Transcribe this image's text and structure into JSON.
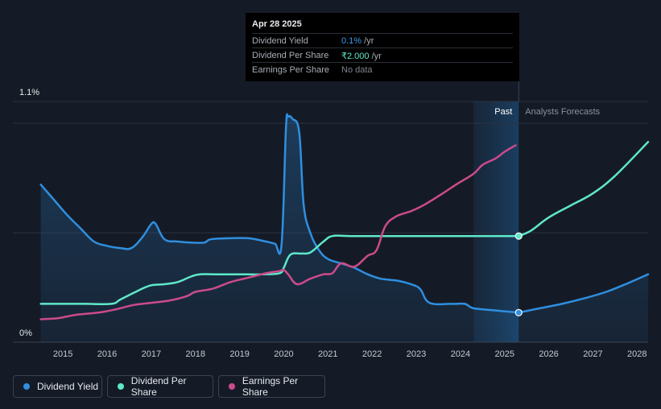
{
  "tooltip": {
    "date": "Apr 28 2025",
    "rows": [
      {
        "label": "Dividend Yield",
        "value": "0.1%",
        "unit": " /yr",
        "color": "#3d9be9"
      },
      {
        "label": "Dividend Per Share",
        "value": "₹2.000",
        "unit": " /yr",
        "color": "#5ee8c9"
      },
      {
        "label": "Earnings Per Share",
        "value": "No data",
        "unit": "",
        "color": "#7d838d"
      }
    ]
  },
  "regions": {
    "past": "Past",
    "forecast": "Analysts Forecasts"
  },
  "legend": [
    {
      "label": "Dividend Yield",
      "color": "#2f8fe0"
    },
    {
      "label": "Dividend Per Share",
      "color": "#5ee8c9"
    },
    {
      "label": "Earnings Per Share",
      "color": "#cc4b8b"
    }
  ],
  "chart_data": {
    "type": "line",
    "y_tick_labels": [
      "1.1%",
      "0%"
    ],
    "ylim": [
      0,
      1.1
    ],
    "xlim": [
      2014.45,
      2028.25
    ],
    "x_ticks": [
      2015,
      2016,
      2017,
      2018,
      2019,
      2020,
      2021,
      2022,
      2023,
      2024,
      2025,
      2026,
      2027,
      2028
    ],
    "past_start": 2024.3,
    "now": 2025.32,
    "grid": true,
    "series": [
      {
        "name": "Dividend Yield",
        "color": "#2f8fe0",
        "area": true,
        "y_unit": "%",
        "points": [
          [
            2014.5,
            0.72
          ],
          [
            2014.8,
            0.65
          ],
          [
            2015.1,
            0.58
          ],
          [
            2015.4,
            0.52
          ],
          [
            2015.7,
            0.46
          ],
          [
            2016.0,
            0.44
          ],
          [
            2016.3,
            0.43
          ],
          [
            2016.55,
            0.43
          ],
          [
            2016.8,
            0.48
          ],
          [
            2017.0,
            0.54
          ],
          [
            2017.1,
            0.54
          ],
          [
            2017.3,
            0.47
          ],
          [
            2017.6,
            0.46
          ],
          [
            2017.9,
            0.455
          ],
          [
            2018.2,
            0.455
          ],
          [
            2018.35,
            0.47
          ],
          [
            2018.8,
            0.475
          ],
          [
            2019.2,
            0.475
          ],
          [
            2019.6,
            0.46
          ],
          [
            2019.8,
            0.45
          ],
          [
            2019.95,
            0.445
          ],
          [
            2020.05,
            0.98
          ],
          [
            2020.1,
            1.03
          ],
          [
            2020.2,
            1.02
          ],
          [
            2020.35,
            0.96
          ],
          [
            2020.45,
            0.63
          ],
          [
            2020.6,
            0.5
          ],
          [
            2020.8,
            0.42
          ],
          [
            2021.0,
            0.38
          ],
          [
            2021.3,
            0.36
          ],
          [
            2021.6,
            0.34
          ],
          [
            2021.9,
            0.31
          ],
          [
            2022.2,
            0.29
          ],
          [
            2022.6,
            0.28
          ],
          [
            2022.95,
            0.26
          ],
          [
            2023.1,
            0.24
          ],
          [
            2023.3,
            0.18
          ],
          [
            2023.8,
            0.175
          ],
          [
            2024.1,
            0.175
          ],
          [
            2024.3,
            0.155
          ],
          [
            2024.8,
            0.145
          ],
          [
            2025.32,
            0.135
          ]
        ],
        "forecast": [
          [
            2025.32,
            0.135
          ],
          [
            2025.8,
            0.155
          ],
          [
            2026.3,
            0.175
          ],
          [
            2026.8,
            0.2
          ],
          [
            2027.3,
            0.23
          ],
          [
            2027.8,
            0.27
          ],
          [
            2028.25,
            0.31
          ]
        ]
      },
      {
        "name": "Dividend Per Share",
        "color": "#5ee8c9",
        "unit": "₹",
        "points": [
          [
            2014.5,
            0.175
          ],
          [
            2015.0,
            0.175
          ],
          [
            2015.5,
            0.175
          ],
          [
            2016.1,
            0.175
          ],
          [
            2016.3,
            0.195
          ],
          [
            2016.6,
            0.225
          ],
          [
            2016.8,
            0.245
          ],
          [
            2017.0,
            0.26
          ],
          [
            2017.3,
            0.265
          ],
          [
            2017.6,
            0.275
          ],
          [
            2017.9,
            0.3
          ],
          [
            2018.1,
            0.31
          ],
          [
            2018.5,
            0.31
          ],
          [
            2019.0,
            0.31
          ],
          [
            2019.5,
            0.31
          ],
          [
            2019.9,
            0.315
          ],
          [
            2020.0,
            0.34
          ],
          [
            2020.15,
            0.4
          ],
          [
            2020.4,
            0.405
          ],
          [
            2020.6,
            0.41
          ],
          [
            2020.9,
            0.46
          ],
          [
            2021.1,
            0.485
          ],
          [
            2021.5,
            0.485
          ],
          [
            2022.5,
            0.485
          ],
          [
            2023.5,
            0.485
          ],
          [
            2024.5,
            0.485
          ],
          [
            2025.32,
            0.485
          ]
        ],
        "forecast": [
          [
            2025.32,
            0.485
          ],
          [
            2025.6,
            0.51
          ],
          [
            2026.0,
            0.57
          ],
          [
            2026.5,
            0.625
          ],
          [
            2027.0,
            0.68
          ],
          [
            2027.5,
            0.76
          ],
          [
            2028.25,
            0.915
          ]
        ]
      },
      {
        "name": "Earnings Per Share",
        "color": "#cc4b8b",
        "points": [
          [
            2014.5,
            0.105
          ],
          [
            2014.9,
            0.11
          ],
          [
            2015.3,
            0.125
          ],
          [
            2015.8,
            0.135
          ],
          [
            2016.2,
            0.15
          ],
          [
            2016.6,
            0.17
          ],
          [
            2017.0,
            0.18
          ],
          [
            2017.4,
            0.19
          ],
          [
            2017.8,
            0.21
          ],
          [
            2018.0,
            0.23
          ],
          [
            2018.4,
            0.245
          ],
          [
            2018.8,
            0.275
          ],
          [
            2019.2,
            0.295
          ],
          [
            2019.6,
            0.315
          ],
          [
            2019.9,
            0.325
          ],
          [
            2020.0,
            0.33
          ],
          [
            2020.1,
            0.31
          ],
          [
            2020.3,
            0.265
          ],
          [
            2020.6,
            0.29
          ],
          [
            2020.9,
            0.31
          ],
          [
            2021.1,
            0.315
          ],
          [
            2021.3,
            0.36
          ],
          [
            2021.6,
            0.345
          ],
          [
            2021.9,
            0.395
          ],
          [
            2022.1,
            0.42
          ],
          [
            2022.3,
            0.53
          ],
          [
            2022.55,
            0.575
          ],
          [
            2022.9,
            0.6
          ],
          [
            2023.2,
            0.63
          ],
          [
            2023.6,
            0.68
          ],
          [
            2023.9,
            0.72
          ],
          [
            2024.3,
            0.77
          ],
          [
            2024.5,
            0.81
          ],
          [
            2024.8,
            0.84
          ],
          [
            2025.0,
            0.87
          ],
          [
            2025.25,
            0.9
          ]
        ]
      }
    ]
  }
}
